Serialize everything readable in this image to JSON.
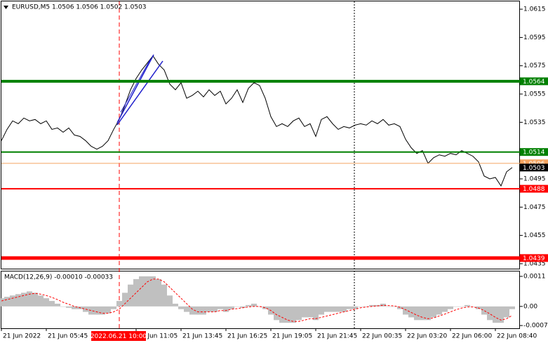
{
  "chart_data": [
    {
      "type": "line",
      "title": "EURUSD,M5  1.0506 1.0506 1.0502 1.0503",
      "color": "#000000",
      "categories": [
        "21 Jun 2022",
        null,
        null,
        null,
        null,
        null,
        null,
        null,
        "21 Jun 05:45",
        null,
        null,
        null,
        null,
        null,
        null,
        null,
        null,
        null,
        null,
        null,
        null,
        null,
        null,
        null,
        "21 Jun 11:05",
        null,
        null,
        null,
        null,
        null,
        null,
        null,
        "21 Jun 13:45",
        null,
        null,
        null,
        null,
        null,
        null,
        null,
        "21 Jun 16:25",
        null,
        null,
        null,
        null,
        null,
        null,
        null,
        "21 Jun 19:05",
        null,
        null,
        null,
        null,
        null,
        null,
        null,
        "21 Jun 21:45",
        null,
        null,
        null,
        null,
        null,
        null,
        null,
        "22 Jun 00:35",
        null,
        null,
        null,
        null,
        null,
        null,
        null,
        "22 Jun 03:20",
        null,
        null,
        null,
        null,
        null,
        null,
        null,
        "22 Jun 06:00",
        null,
        null,
        null,
        null,
        null,
        null,
        null,
        "22 Jun 08:40",
        null,
        null,
        null
      ],
      "values": [
        1.0522,
        1.053,
        1.0536,
        1.0534,
        1.0538,
        1.0536,
        1.0537,
        1.0534,
        1.0536,
        1.053,
        1.0531,
        1.0528,
        1.0531,
        1.0526,
        1.0525,
        1.0522,
        1.0518,
        1.0516,
        1.0518,
        1.0522,
        1.053,
        1.0537,
        1.0547,
        1.0558,
        1.0566,
        1.0572,
        1.0577,
        1.0582,
        1.0576,
        1.0572,
        1.0562,
        1.0558,
        1.0563,
        1.0552,
        1.0554,
        1.0557,
        1.0553,
        1.0558,
        1.0554,
        1.0557,
        1.0548,
        1.0552,
        1.0558,
        1.0549,
        1.0559,
        1.0563,
        1.0561,
        1.0552,
        1.0539,
        1.0532,
        1.0534,
        1.0532,
        1.0536,
        1.0538,
        1.0532,
        1.0534,
        1.0525,
        1.0537,
        1.0539,
        1.0534,
        1.053,
        1.0532,
        1.0531,
        1.0533,
        1.0534,
        1.0533,
        1.0536,
        1.0534,
        1.0537,
        1.0533,
        1.0534,
        1.0532,
        1.0523,
        1.0517,
        1.0513,
        1.0515,
        1.0506,
        1.051,
        1.0512,
        1.0511,
        1.0513,
        1.0512,
        1.0515,
        1.0513,
        1.0511,
        1.0507,
        1.0497,
        1.0495,
        1.0496,
        1.049,
        1.05,
        1.0503
      ],
      "ylim": [
        1.04315,
        1.06205
      ],
      "yticks": [
        1.0615,
        1.0595,
        1.0575,
        1.0555,
        1.0535,
        1.0495,
        1.0475,
        1.0455,
        1.0435
      ],
      "levels": [
        {
          "value": 1.0564,
          "color": "#008000",
          "width": 4
        },
        {
          "value": 1.0514,
          "color": "#008000",
          "width": 2
        },
        {
          "value": 1.0506,
          "color": "#f4a460",
          "width": 1
        },
        {
          "value": 1.0488,
          "color": "#ff0000",
          "width": 2
        },
        {
          "value": 1.0439,
          "color": "#ff0000",
          "width": 5
        }
      ],
      "current_price": 1.0503,
      "crosshair_label": "2022.06.21 10:00"
    },
    {
      "type": "macd",
      "title": "MACD(12,26,9) -0.00010 -0.00033",
      "color": "#c0c0c0",
      "signal_color": "#ff0000",
      "values": [
        0.0003,
        0.00035,
        0.0004,
        0.00045,
        0.0005,
        0.00055,
        0.0005,
        0.0004,
        0.0003,
        0.0002,
        0.0001,
        0,
        -5e-05,
        -0.0001,
        -0.0001,
        -0.0002,
        -0.0003,
        -0.0003,
        -0.0003,
        -0.00025,
        -0.0001,
        0.0002,
        0.0005,
        0.0008,
        0.001,
        0.0011,
        0.0011,
        0.0011,
        0.001,
        0.0008,
        0.0004,
        0.0001,
        -0.0001,
        -0.0002,
        -0.0003,
        -0.0003,
        -0.0003,
        -0.0002,
        -0.0002,
        -0.0001,
        -0.0002,
        -0.0001,
        0,
        -5e-05,
        5e-05,
        0.0001,
        0,
        -0.0001,
        -0.0003,
        -0.0005,
        -0.0006,
        -0.0006,
        -0.0006,
        -0.0005,
        -0.0004,
        -0.0004,
        -0.0005,
        -0.0003,
        -0.0002,
        -0.0002,
        -0.0002,
        -0.0002,
        -0.0001,
        -0.0001,
        0,
        0,
        5e-05,
        5e-05,
        0.0001,
        0,
        0,
        -0.0001,
        -0.0003,
        -0.0004,
        -0.0005,
        -0.0005,
        -0.0005,
        -0.0004,
        -0.0003,
        -0.0002,
        -0.0001,
        0,
        0,
        5e-05,
        0,
        -0.0001,
        -0.0003,
        -0.0005,
        -0.0006,
        -0.0006,
        -0.0004,
        -0.0001
      ],
      "signal": [
        0.0002,
        0.00025,
        0.0003,
        0.00035,
        0.0004,
        0.00045,
        0.00048,
        0.00045,
        0.0004,
        0.00033,
        0.00025,
        0.00015,
        8e-05,
        0,
        -5e-05,
        -0.0001,
        -0.00015,
        -0.0002,
        -0.00025,
        -0.00025,
        -0.0002,
        -0.0001,
        0.0001,
        0.0003,
        0.0005,
        0.0007,
        0.0009,
        0.001,
        0.001,
        0.0009,
        0.0007,
        0.0005,
        0.0003,
        0.0001,
        -0.0001,
        -0.0002,
        -0.0002,
        -0.0002,
        -0.0002,
        -0.00015,
        -0.00015,
        -0.0001,
        -8e-05,
        -5e-05,
        -2e-05,
        0,
        0,
        -5e-05,
        -0.00015,
        -0.0003,
        -0.0004,
        -0.0005,
        -0.00055,
        -0.00055,
        -0.0005,
        -0.00045,
        -0.00045,
        -0.0004,
        -0.00035,
        -0.0003,
        -0.00025,
        -0.0002,
        -0.00015,
        -0.0001,
        -5e-05,
        -2e-05,
        0,
        2e-05,
        4e-05,
        3e-05,
        2e-05,
        -3e-05,
        -0.00012,
        -0.00022,
        -0.00032,
        -0.0004,
        -0.00045,
        -0.00042,
        -0.00035,
        -0.00028,
        -0.0002,
        -0.00012,
        -6e-05,
        -2e-05,
        -2e-05,
        -6e-05,
        -0.00015,
        -0.00027,
        -0.0004,
        -0.0005,
        -0.00045,
        -0.00033
      ],
      "ylim": [
        -0.0008,
        0.00128
      ],
      "yticks": [
        0.0011,
        {
          "value": 0,
          "label": "0.00"
        },
        -0.0007
      ]
    }
  ]
}
